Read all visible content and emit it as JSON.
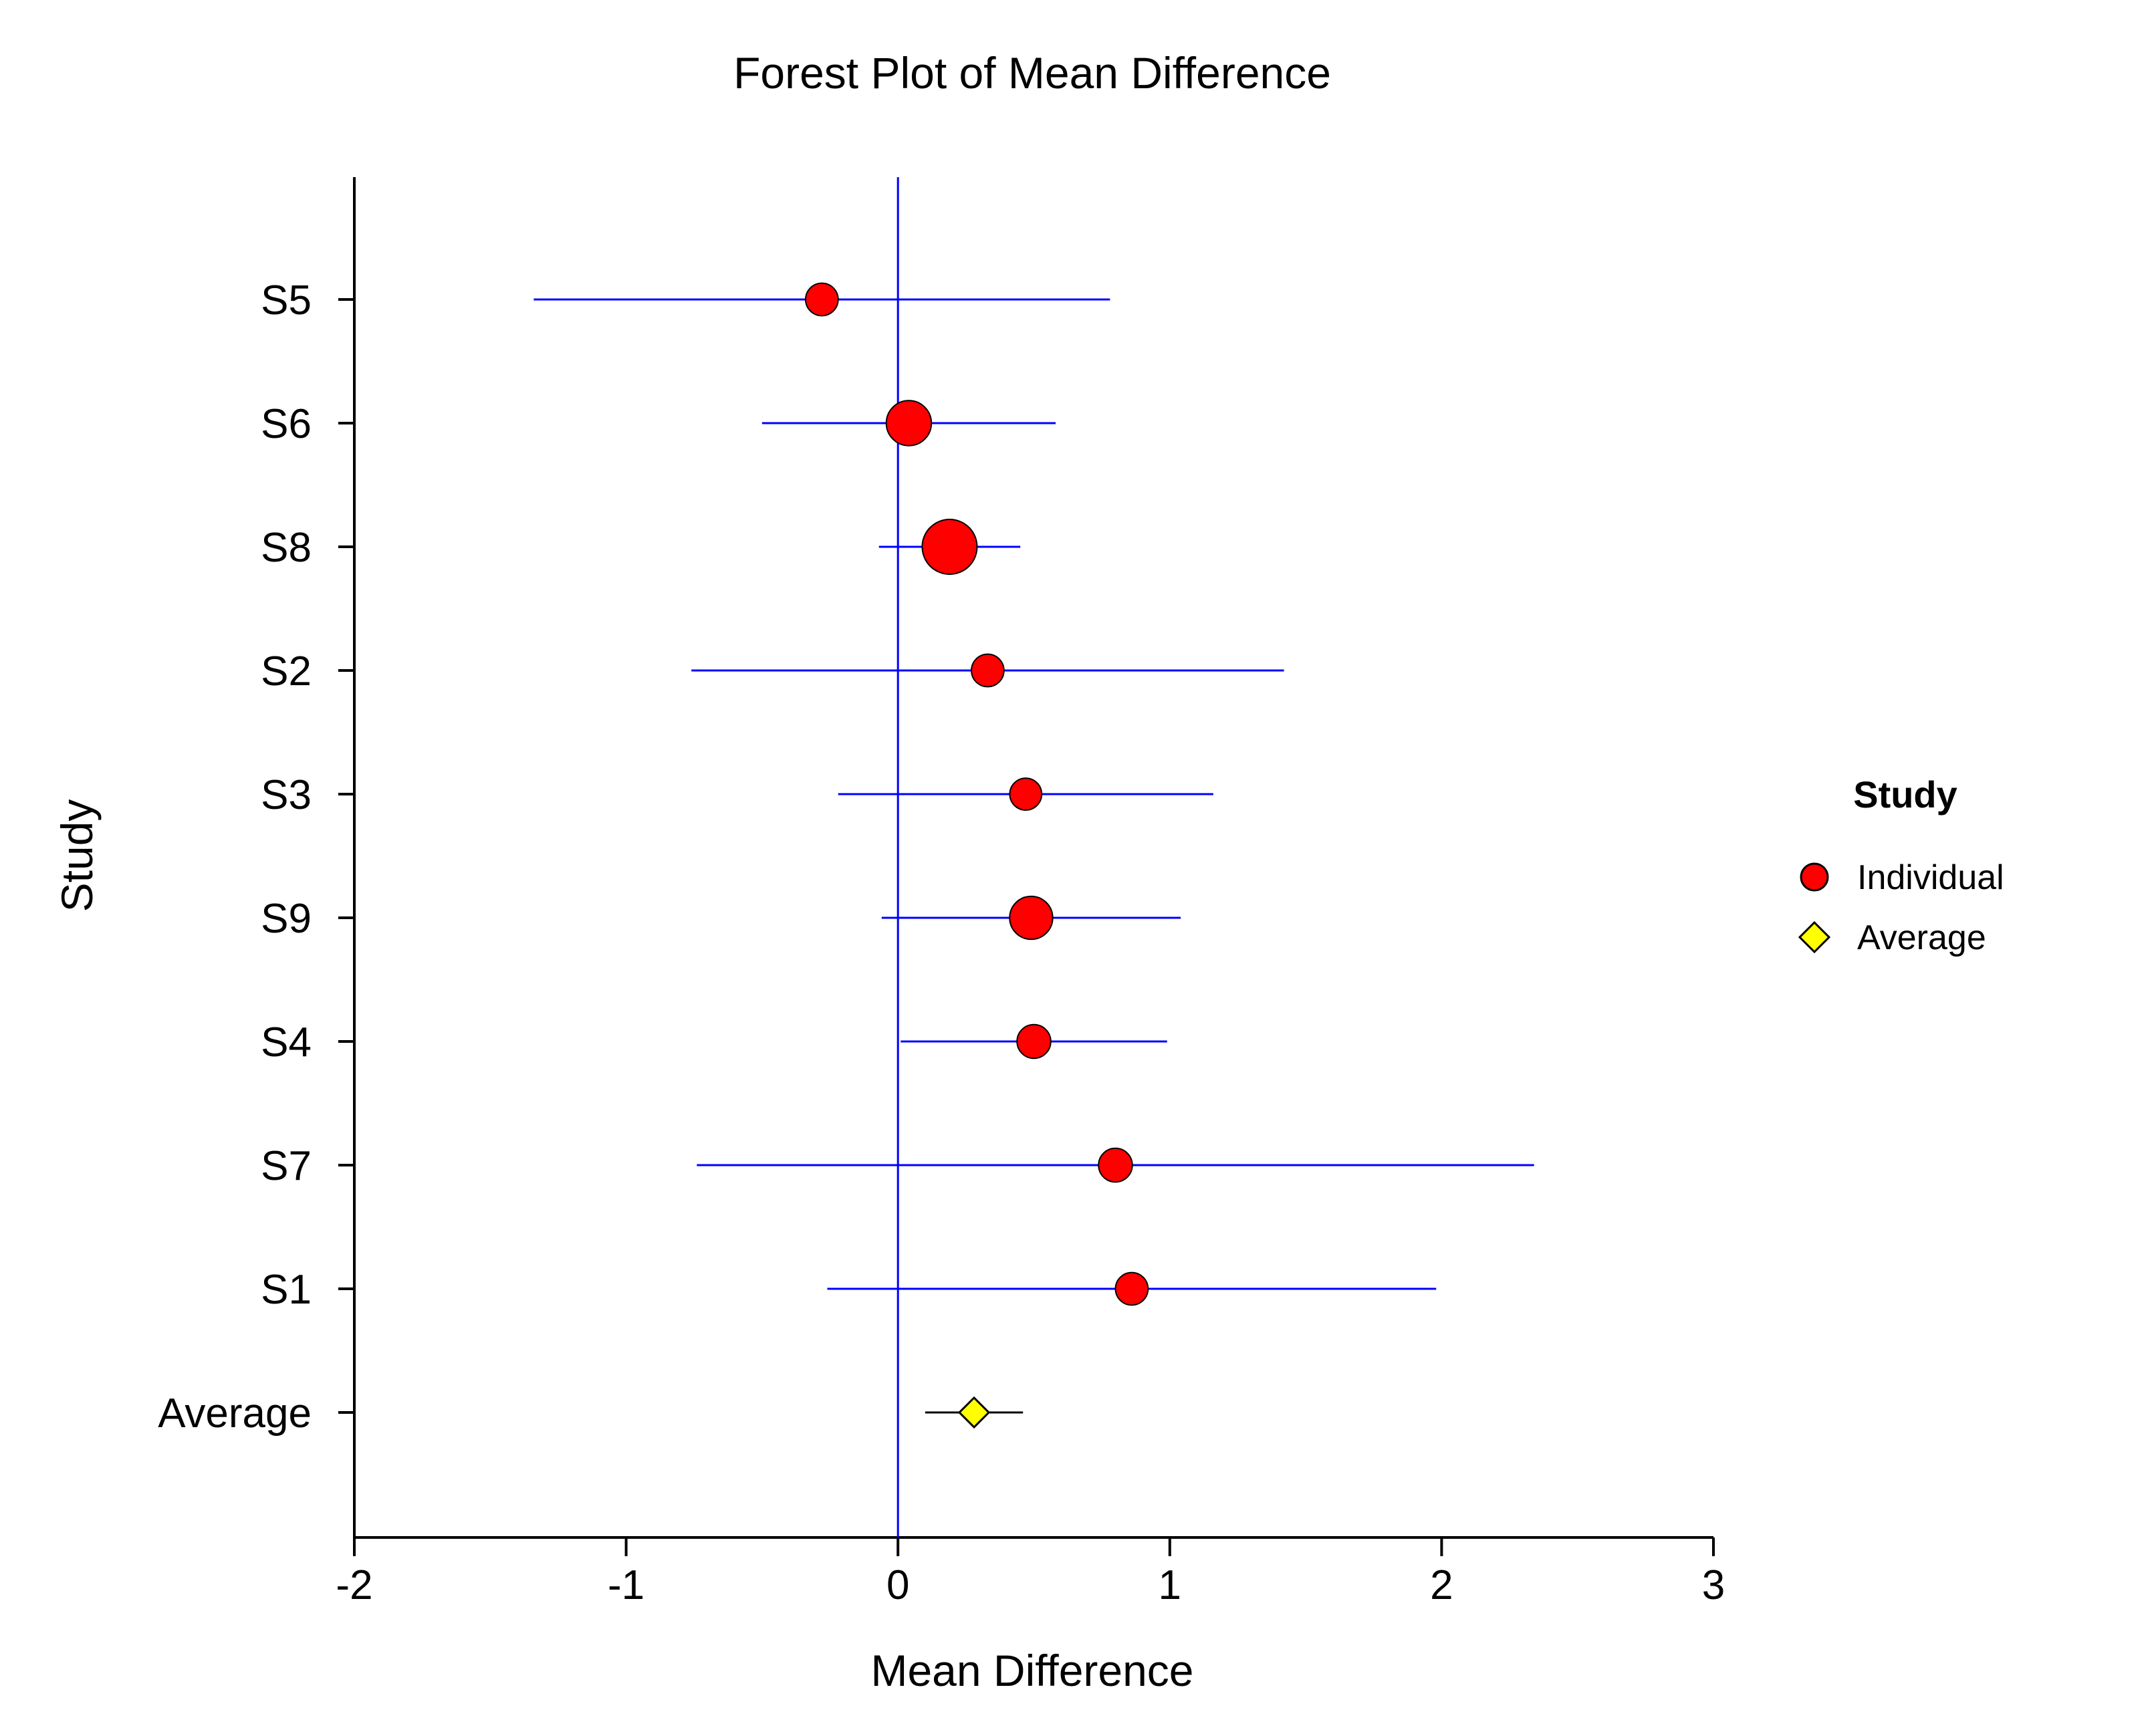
{
  "chart_data": {
    "type": "forest",
    "title": "Forest Plot of Mean Difference",
    "xlabel": "Mean Difference",
    "ylabel": "Study",
    "xlim": [
      -2,
      3
    ],
    "xticks": [
      "-2",
      "-1",
      "0",
      "1",
      "2",
      "3"
    ],
    "reference_line_x": 0,
    "grid": false,
    "legend": {
      "title": "Study",
      "placement": "right",
      "entries": [
        {
          "label": "Individual",
          "marker": "circle",
          "color": "#ff0000"
        },
        {
          "label": "Average",
          "marker": "diamond",
          "color": "#ffff00"
        }
      ]
    },
    "studies": [
      {
        "label": "S5",
        "estimate": -0.28,
        "lower": -1.34,
        "upper": 0.78,
        "weight": 1.1
      },
      {
        "label": "S6",
        "estimate": 0.04,
        "lower": -0.5,
        "upper": 0.58,
        "weight": 4.0
      },
      {
        "label": "S8",
        "estimate": 0.19,
        "lower": -0.07,
        "upper": 0.45,
        "weight": 7.5
      },
      {
        "label": "S2",
        "estimate": 0.33,
        "lower": -0.76,
        "upper": 1.42,
        "weight": 1.1
      },
      {
        "label": "S3",
        "estimate": 0.47,
        "lower": -0.22,
        "upper": 1.16,
        "weight": 1.0
      },
      {
        "label": "S9",
        "estimate": 0.49,
        "lower": -0.06,
        "upper": 1.04,
        "weight": 3.4
      },
      {
        "label": "S4",
        "estimate": 0.5,
        "lower": 0.01,
        "upper": 0.99,
        "weight": 1.3
      },
      {
        "label": "S7",
        "estimate": 0.8,
        "lower": -0.74,
        "upper": 2.34,
        "weight": 1.3
      },
      {
        "label": "S1",
        "estimate": 0.86,
        "lower": -0.26,
        "upper": 1.98,
        "weight": 1.1
      }
    ],
    "average": {
      "label": "Average",
      "estimate": 0.28,
      "lower": 0.1,
      "upper": 0.46
    },
    "colors": {
      "ci_line": "#0000ff",
      "reference_line": "#0000ff",
      "marker_fill": "#ff0000",
      "average_fill": "#ffff00",
      "average_ci_line": "#000000"
    }
  }
}
